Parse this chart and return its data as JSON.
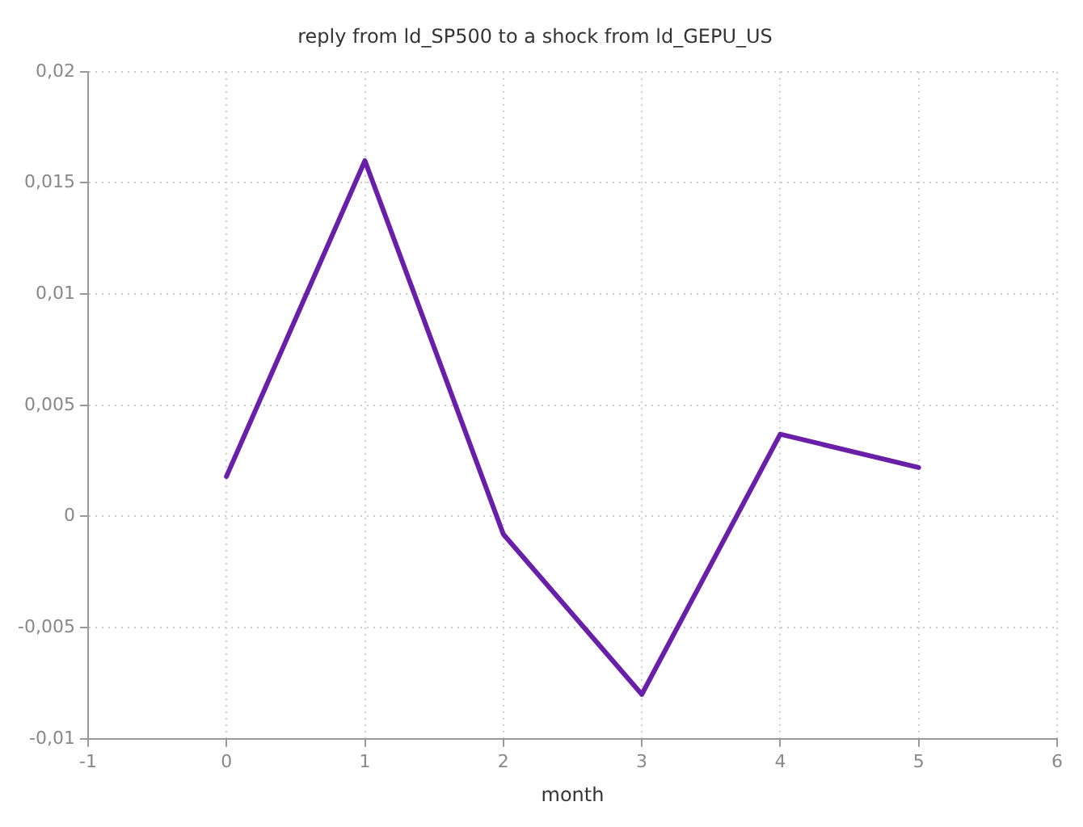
{
  "chart_data": {
    "type": "line",
    "title": "reply from ld_SP500 to a shock from ld_GEPU_US",
    "xlabel": "month",
    "x": [
      0,
      1,
      2,
      3,
      4,
      5
    ],
    "series": [
      {
        "color": "#6a1fa8",
        "values": [
          0.0018,
          0.016,
          -0.0008,
          -0.008,
          0.0037,
          0.0022
        ]
      }
    ],
    "xlim": [
      -1,
      6
    ],
    "xticks": [
      -1,
      0,
      1,
      2,
      3,
      4,
      5,
      6
    ],
    "ylim": [
      -0.01,
      0.02
    ],
    "yticks": [
      {
        "value": -0.01,
        "label": "-0,01"
      },
      {
        "value": -0.005,
        "label": "-0,005"
      },
      {
        "value": 0,
        "label": "0"
      },
      {
        "value": 0.005,
        "label": "0,005"
      },
      {
        "value": 0.01,
        "label": "0,01"
      },
      {
        "value": 0.015,
        "label": "0,015"
      },
      {
        "value": 0.02,
        "label": "0,02"
      }
    ],
    "grid": true,
    "legend": false,
    "marker": "none",
    "line_style": "solid"
  }
}
